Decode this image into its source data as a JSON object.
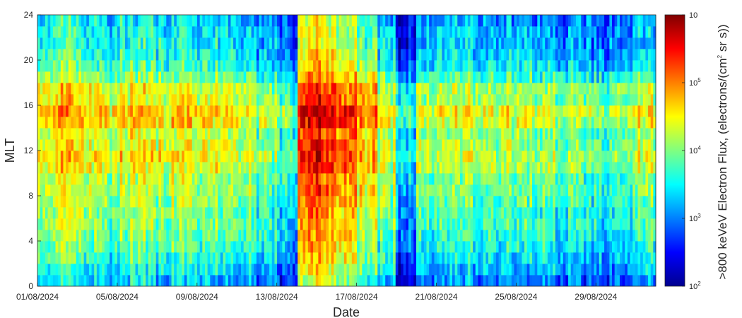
{
  "chart_data": {
    "type": "heatmap",
    "title": "",
    "xlabel": "Date",
    "ylabel": "MLT",
    "x_tick_labels": [
      "01/08/2024",
      "05/08/2024",
      "09/08/2024",
      "13/08/2024",
      "17/08/2024",
      "21/08/2024",
      "25/08/2024",
      "29/08/2024"
    ],
    "x_tick_days": [
      0,
      4,
      8,
      12,
      16,
      20,
      24,
      28
    ],
    "x_range_days": [
      0,
      31
    ],
    "y_ticks": [
      0,
      4,
      8,
      12,
      16,
      20,
      24
    ],
    "ylim": [
      0,
      24
    ],
    "y_bin_width_hours": 1,
    "colorbar": {
      "label_main": ">800 keVeV Electron Flux, (electrons/(cm",
      "label_sup": "2",
      "label_tail": " sr s))",
      "scale": "log",
      "range": [
        100,
        1000000
      ],
      "tick_base": [
        "10",
        "10",
        "10",
        "10",
        "10"
      ],
      "tick_exponents": [
        "2",
        "3",
        "4",
        "5",
        ""
      ],
      "colormap": "jet"
    },
    "mlt_profile_log10": [
      3.2,
      3.4,
      3.6,
      3.7,
      3.8,
      3.9,
      3.9,
      4.0,
      4.1,
      4.1,
      4.3,
      4.4,
      4.3,
      4.2,
      4.5,
      4.6,
      4.3,
      4.3,
      3.9,
      3.6,
      3.5,
      3.4,
      3.4,
      3.3
    ],
    "daily_offset_log10": [
      0.1,
      0.3,
      0.2,
      0.0,
      0.2,
      0.3,
      0.1,
      0.2,
      0.1,
      0.0,
      -0.1,
      -0.3,
      -0.6,
      1.0,
      1.1,
      0.7,
      0.4,
      0.0,
      -0.9,
      -0.2,
      -0.1,
      -0.1,
      -0.1,
      -0.2,
      -0.2,
      -0.2,
      -0.3,
      -0.4,
      -0.5,
      -0.3,
      -0.1
    ]
  }
}
